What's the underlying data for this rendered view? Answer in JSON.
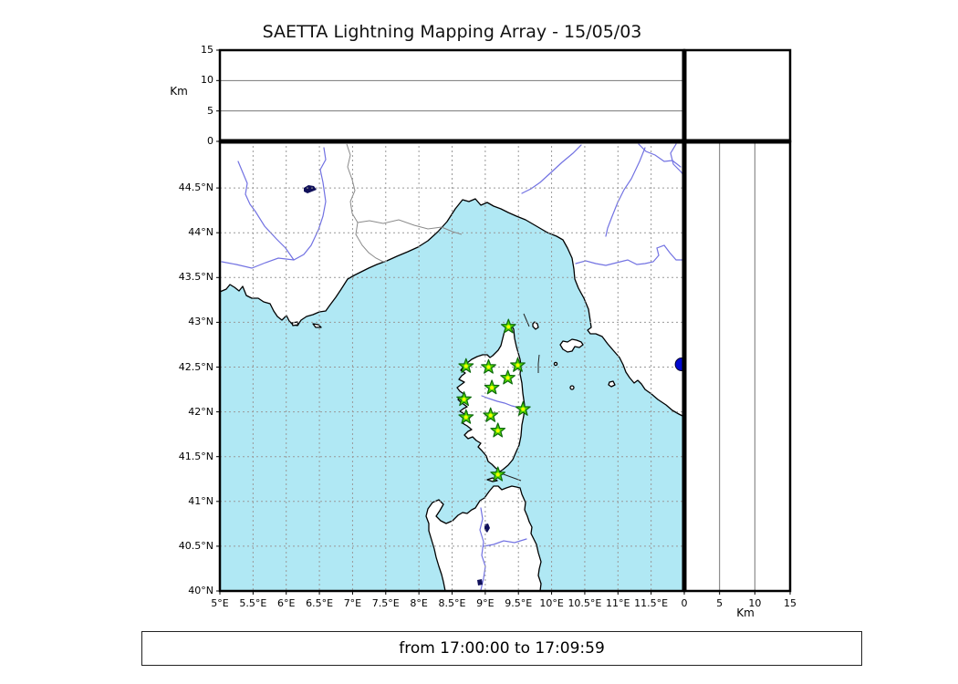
{
  "title": "SAETTA Lightning Mapping Array - 15/05/03",
  "footer_text": "from 17:00:00 to 17:09:59",
  "axes": {
    "altitude": {
      "label": "Km",
      "max": 15,
      "ticks": [
        0,
        5,
        10,
        15
      ],
      "gridlines": [
        5,
        10
      ]
    },
    "longitude": {
      "min": 5,
      "max": 12,
      "ticks": [
        {
          "value": 5,
          "label": "5°E"
        },
        {
          "value": 5.5,
          "label": "5.5°E"
        },
        {
          "value": 6,
          "label": "6°E"
        },
        {
          "value": 6.5,
          "label": "6.5°E"
        },
        {
          "value": 7,
          "label": "7°E"
        },
        {
          "value": 7.5,
          "label": "7.5°E"
        },
        {
          "value": 8,
          "label": "8°E"
        },
        {
          "value": 8.5,
          "label": "8.5°E"
        },
        {
          "value": 9,
          "label": "9°E"
        },
        {
          "value": 9.5,
          "label": "9.5°E"
        },
        {
          "value": 10,
          "label": "10°E"
        },
        {
          "value": 10.5,
          "label": "10.5°E"
        },
        {
          "value": 11,
          "label": "11°E"
        },
        {
          "value": 11.5,
          "label": "11.5°E"
        }
      ]
    },
    "latitude": {
      "min": 40,
      "max": 45,
      "ticks": [
        {
          "value": 44.5,
          "label": "44.5°N"
        },
        {
          "value": 44,
          "label": "44°N"
        },
        {
          "value": 43.5,
          "label": "43.5°N"
        },
        {
          "value": 43,
          "label": "43°N"
        },
        {
          "value": 42.5,
          "label": "42.5°N"
        },
        {
          "value": 42,
          "label": "42°N"
        },
        {
          "value": 41.5,
          "label": "41.5°N"
        },
        {
          "value": 41,
          "label": "41°N"
        },
        {
          "value": 40.5,
          "label": "40.5°N"
        },
        {
          "value": 40,
          "label": "40°N"
        }
      ]
    }
  },
  "stations": [
    {
      "lon": 9.35,
      "lat": 42.95
    },
    {
      "lon": 8.71,
      "lat": 42.51
    },
    {
      "lon": 9.05,
      "lat": 42.5
    },
    {
      "lon": 9.49,
      "lat": 42.52
    },
    {
      "lon": 9.34,
      "lat": 42.38
    },
    {
      "lon": 9.1,
      "lat": 42.27
    },
    {
      "lon": 8.68,
      "lat": 42.14
    },
    {
      "lon": 9.57,
      "lat": 42.03
    },
    {
      "lon": 9.08,
      "lat": 41.96
    },
    {
      "lon": 8.71,
      "lat": 41.94
    },
    {
      "lon": 9.19,
      "lat": 41.79
    },
    {
      "lon": 9.19,
      "lat": 41.3
    }
  ],
  "events": [
    {
      "lon": 11.96,
      "lat": 42.53,
      "alt_km": 0
    }
  ],
  "colors": {
    "sea": "#b0e8f4",
    "land": "#ffffff",
    "river": "#7272e2",
    "grid": "#999999",
    "station_fill": "#52d400",
    "station_edge": "#0d6b0d",
    "station_center": "#f0ff00",
    "event": "#0008d0"
  }
}
